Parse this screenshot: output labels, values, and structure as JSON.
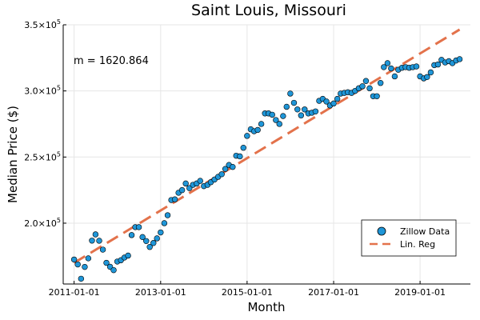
{
  "chart_data": {
    "type": "scatter",
    "title": "Saint Louis, Missouri",
    "xlabel": "Month",
    "ylabel": "Median Price ($)",
    "x_start": "2011-01-01",
    "x_end": "2019-12-01",
    "xlim": [
      "2010-10-01",
      "2020-03-01"
    ],
    "ylim": [
      154000,
      350000
    ],
    "x_ticks": [
      "2011-01-01",
      "2013-01-01",
      "2015-01-01",
      "2017-01-01",
      "2019-01-01"
    ],
    "y_ticks": [
      {
        "value": 200000,
        "base": "2.0×10",
        "exp": "5"
      },
      {
        "value": 250000,
        "base": "2.5×10",
        "exp": "5"
      },
      {
        "value": 300000,
        "base": "3.0×10",
        "exp": "5"
      },
      {
        "value": 350000,
        "base": "3.5×10",
        "exp": "5"
      }
    ],
    "grid": true,
    "legend_position": "bottom-right",
    "annotation": "m = 1620.864",
    "series": [
      {
        "name": "Zillow Data",
        "kind": "scatter",
        "color": "#1f96d8",
        "values": [
          172500,
          168800,
          158000,
          166900,
          173400,
          186800,
          191500,
          186700,
          180000,
          170000,
          167000,
          164500,
          171000,
          172000,
          174000,
          175500,
          191000,
          197000,
          197000,
          189500,
          186500,
          182000,
          185000,
          188500,
          193000,
          200000,
          206000,
          217500,
          218000,
          223000,
          225000,
          230000,
          226500,
          229000,
          230000,
          232000,
          228000,
          229000,
          231000,
          233000,
          235000,
          237000,
          241000,
          244000,
          242500,
          251000,
          250500,
          257000,
          266000,
          271000,
          269500,
          270500,
          275000,
          283000,
          283000,
          282000,
          278000,
          275000,
          281000,
          288000,
          298000,
          291000,
          286000,
          281500,
          286000,
          283000,
          283500,
          284500,
          292500,
          294000,
          292000,
          289000,
          290500,
          294000,
          298000,
          298500,
          299000,
          298500,
          300000,
          302000,
          303500,
          307500,
          302000,
          296000,
          296000,
          306000,
          318000,
          321000,
          317000,
          311000,
          316000,
          317500,
          318000,
          317500,
          318000,
          318500,
          311000,
          309500,
          310500,
          314000,
          319500,
          320000,
          323500,
          321500,
          322500,
          321000,
          323000,
          324000
        ]
      },
      {
        "name": "Lin. Reg",
        "kind": "line",
        "style": "dashed",
        "color": "#e3724b",
        "start_value": 170000,
        "end_value": 346400
      }
    ]
  }
}
